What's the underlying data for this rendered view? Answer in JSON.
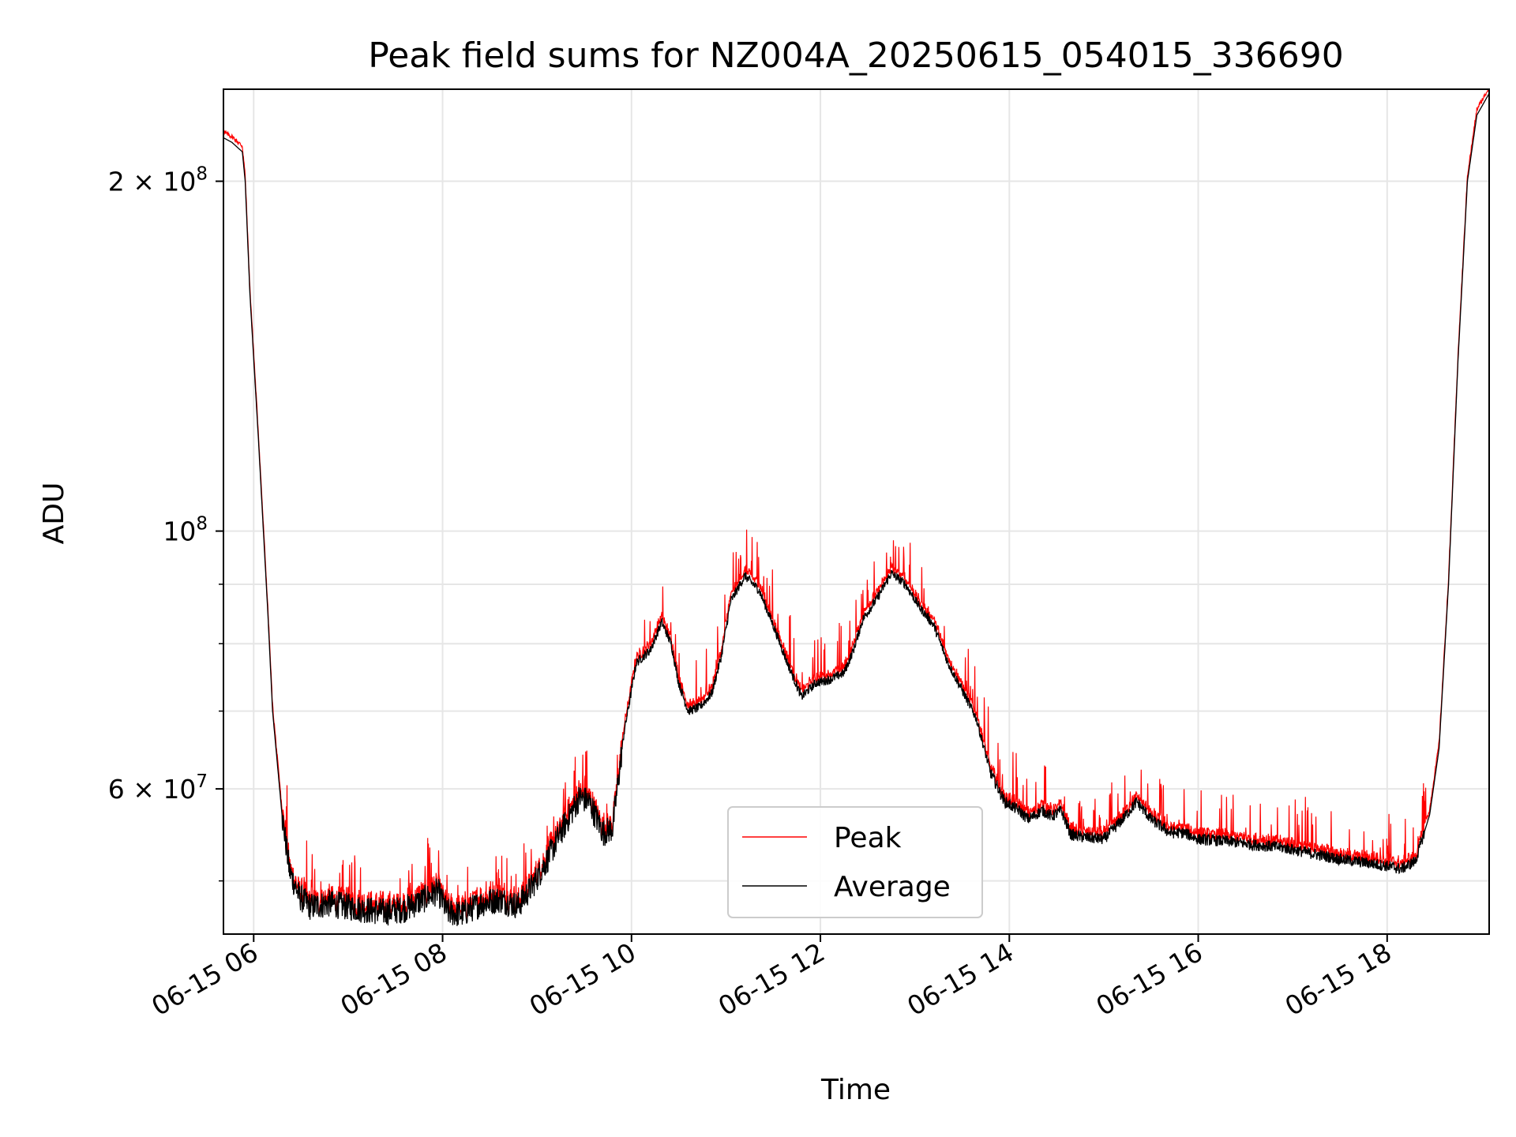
{
  "chart_data": {
    "type": "line",
    "title": "Peak field sums for NZ004A_20250615_054015_336690",
    "xlabel": "Time",
    "ylabel": "ADU",
    "yscale": "log",
    "xlim": [
      5.68,
      19.08
    ],
    "ylim": [
      45000000,
      240000000
    ],
    "grid": true,
    "legend_position": "lower-center",
    "x_ticks": [
      {
        "x": 6,
        "label": "06-15 06"
      },
      {
        "x": 8,
        "label": "06-15 08"
      },
      {
        "x": 10,
        "label": "06-15 10"
      },
      {
        "x": 12,
        "label": "06-15 12"
      },
      {
        "x": 14,
        "label": "06-15 14"
      },
      {
        "x": 16,
        "label": "06-15 16"
      },
      {
        "x": 18,
        "label": "06-15 18"
      }
    ],
    "y_ticks": [
      {
        "y": 200000000,
        "label": "2 × 10",
        "exp": "8"
      },
      {
        "y": 100000000,
        "label": "10",
        "exp": "8"
      },
      {
        "y": 60000000,
        "label": "6 × 10",
        "exp": "7"
      }
    ],
    "y_minor_ticks": [
      50000000,
      70000000,
      80000000,
      90000000
    ],
    "series": [
      {
        "name": "Average",
        "color": "#000000",
        "points": [
          [
            5.68,
            218000000
          ],
          [
            5.77,
            216000000
          ],
          [
            5.88,
            212000000
          ],
          [
            5.91,
            200000000
          ],
          [
            5.96,
            160000000
          ],
          [
            6.05,
            120000000
          ],
          [
            6.15,
            85000000
          ],
          [
            6.2,
            70000000
          ],
          [
            6.3,
            57000000
          ],
          [
            6.38,
            51000000
          ],
          [
            6.48,
            48500000
          ],
          [
            6.6,
            47500000
          ],
          [
            6.8,
            47800000
          ],
          [
            7.0,
            47500000
          ],
          [
            7.2,
            47200000
          ],
          [
            7.4,
            47000000
          ],
          [
            7.6,
            47300000
          ],
          [
            7.8,
            48200000
          ],
          [
            7.95,
            49000000
          ],
          [
            8.05,
            47000000
          ],
          [
            8.2,
            46800000
          ],
          [
            8.4,
            47800000
          ],
          [
            8.6,
            48200000
          ],
          [
            8.8,
            47600000
          ],
          [
            8.95,
            49500000
          ],
          [
            9.1,
            52000000
          ],
          [
            9.3,
            56000000
          ],
          [
            9.45,
            59000000
          ],
          [
            9.55,
            58500000
          ],
          [
            9.7,
            55000000
          ],
          [
            9.8,
            55500000
          ],
          [
            9.92,
            67000000
          ],
          [
            10.05,
            77000000
          ],
          [
            10.2,
            79000000
          ],
          [
            10.32,
            83500000
          ],
          [
            10.42,
            80000000
          ],
          [
            10.5,
            74000000
          ],
          [
            10.6,
            70000000
          ],
          [
            10.72,
            70500000
          ],
          [
            10.85,
            72500000
          ],
          [
            10.95,
            78000000
          ],
          [
            11.05,
            87000000
          ],
          [
            11.2,
            91500000
          ],
          [
            11.35,
            89000000
          ],
          [
            11.5,
            83000000
          ],
          [
            11.65,
            77000000
          ],
          [
            11.8,
            72000000
          ],
          [
            11.95,
            74000000
          ],
          [
            12.1,
            74500000
          ],
          [
            12.25,
            75500000
          ],
          [
            12.35,
            79000000
          ],
          [
            12.45,
            84000000
          ],
          [
            12.6,
            87500000
          ],
          [
            12.75,
            92000000
          ],
          [
            12.9,
            90000000
          ],
          [
            13.05,
            86000000
          ],
          [
            13.2,
            83000000
          ],
          [
            13.35,
            77000000
          ],
          [
            13.5,
            73000000
          ],
          [
            13.65,
            69000000
          ],
          [
            13.8,
            62000000
          ],
          [
            13.95,
            58500000
          ],
          [
            14.1,
            57500000
          ],
          [
            14.2,
            56500000
          ],
          [
            14.35,
            57500000
          ],
          [
            14.45,
            56800000
          ],
          [
            14.55,
            57500000
          ],
          [
            14.65,
            54800000
          ],
          [
            14.8,
            54500000
          ],
          [
            15.0,
            54300000
          ],
          [
            15.2,
            56500000
          ],
          [
            15.35,
            58500000
          ],
          [
            15.5,
            56500000
          ],
          [
            15.7,
            55000000
          ],
          [
            15.85,
            55000000
          ],
          [
            16.0,
            54300000
          ],
          [
            16.3,
            54100000
          ],
          [
            16.6,
            53700000
          ],
          [
            16.9,
            53400000
          ],
          [
            17.2,
            52800000
          ],
          [
            17.5,
            52200000
          ],
          [
            17.8,
            51800000
          ],
          [
            18.0,
            51500000
          ],
          [
            18.15,
            51200000
          ],
          [
            18.3,
            52000000
          ],
          [
            18.45,
            57000000
          ],
          [
            18.55,
            65000000
          ],
          [
            18.65,
            90000000
          ],
          [
            18.75,
            140000000
          ],
          [
            18.85,
            200000000
          ],
          [
            18.95,
            228000000
          ],
          [
            19.08,
            238000000
          ]
        ]
      }
    ]
  }
}
